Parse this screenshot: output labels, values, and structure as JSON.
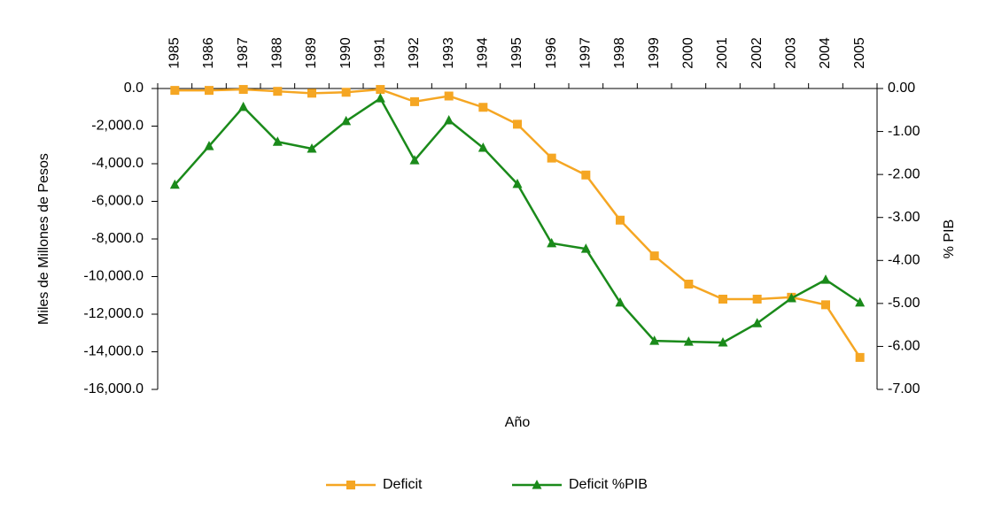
{
  "chart_data": {
    "type": "line",
    "x_label": "Año",
    "y_label": "Miles de Millones de Pesos",
    "y2_label": "% PIB",
    "categories": [
      "1985",
      "1986",
      "1987",
      "1988",
      "1989",
      "1990",
      "1991",
      "1992",
      "1993",
      "1994",
      "1995",
      "1996",
      "1997",
      "1998",
      "1999",
      "2000",
      "2001",
      "2002",
      "2003",
      "2004",
      "2005"
    ],
    "series": [
      {
        "name": "Deficit",
        "color": "#f5a623",
        "marker": "square",
        "values": [
          -100,
          -100,
          -50,
          -150,
          -250,
          -200,
          -50,
          -700,
          -400,
          -1000,
          -1900,
          -3700,
          -4600,
          -7000,
          -8900,
          -10400,
          -11200,
          -11200,
          -11100,
          -11500,
          -14300
        ]
      },
      {
        "name": "Deficit %PIB",
        "color": "#1a8a1a",
        "marker": "triangle",
        "axis": "y2",
        "values": [
          -2.24,
          -1.34,
          -0.43,
          -1.24,
          -1.4,
          -0.76,
          -0.23,
          -1.67,
          -0.74,
          -1.38,
          -2.22,
          -3.6,
          -3.73,
          -4.98,
          -5.87,
          -5.89,
          -5.91,
          -5.46,
          -4.88,
          -4.45,
          -4.98
        ]
      }
    ],
    "ylim": [
      0,
      -16000
    ],
    "yticks": [
      {
        "value": 0,
        "label": "0.0"
      },
      {
        "value": -2000,
        "label": "-2,000.0"
      },
      {
        "value": -4000,
        "label": "-4,000.0"
      },
      {
        "value": -6000,
        "label": "-6,000.0"
      },
      {
        "value": -8000,
        "label": "-8,000.0"
      },
      {
        "value": -10000,
        "label": "-10,000.0"
      },
      {
        "value": -12000,
        "label": "-12,000.0"
      },
      {
        "value": -14000,
        "label": "-14,000.0"
      },
      {
        "value": -16000,
        "label": "-16,000.0"
      }
    ],
    "y2lim": [
      0,
      -7
    ],
    "y2ticks": [
      {
        "value": 0,
        "label": "0.00"
      },
      {
        "value": -1,
        "label": "-1.00"
      },
      {
        "value": -2,
        "label": "-2.00"
      },
      {
        "value": -3,
        "label": "-3.00"
      },
      {
        "value": -4,
        "label": "-4.00"
      },
      {
        "value": -5,
        "label": "-5.00"
      },
      {
        "value": -6,
        "label": "-6.00"
      },
      {
        "value": -7,
        "label": "-7.00"
      }
    ],
    "legend": "bottom"
  }
}
